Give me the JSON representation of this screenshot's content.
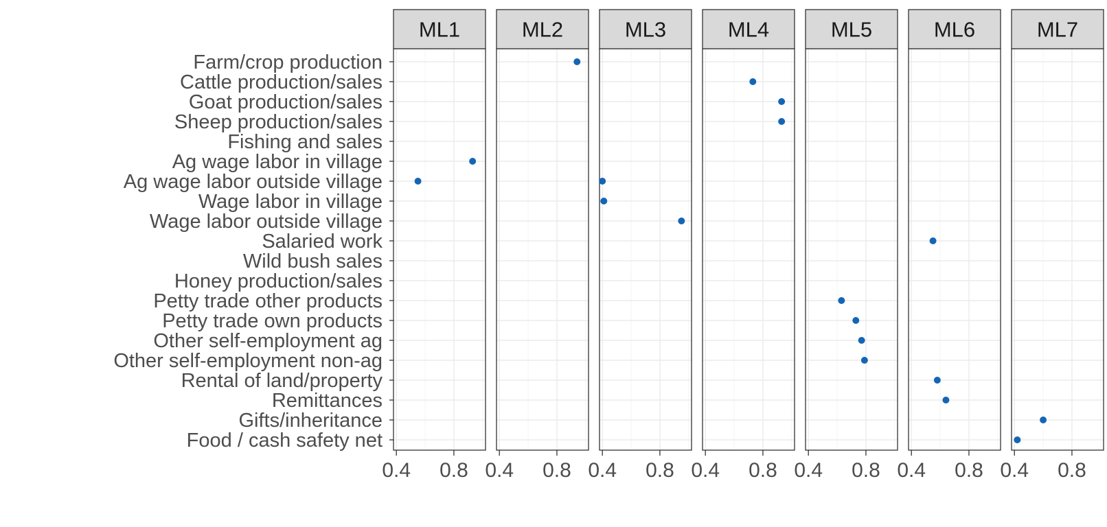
{
  "chart_data": {
    "type": "scatter",
    "facet_variable": "panel",
    "panels": [
      "ML1",
      "ML2",
      "ML3",
      "ML4",
      "ML5",
      "ML6",
      "ML7"
    ],
    "categories": [
      "Farm/crop production",
      "Cattle production/sales",
      "Goat production/sales",
      "Sheep production/sales",
      "Fishing and sales",
      "Ag wage labor in village",
      "Ag wage labor outside village",
      "Wage labor in village",
      "Wage labor outside village",
      "Salaried work",
      "Wild bush sales",
      "Honey production/sales",
      "Petty trade other products",
      "Petty trade own products",
      "Other self-employment ag",
      "Other self-employment non-ag",
      "Rental of land/property",
      "Remittances",
      "Gifts/inheritance",
      "Food / cash safety net"
    ],
    "x_ticks": [
      0.4,
      0.8
    ],
    "x_tick_labels": [
      "0.4",
      "0.8"
    ],
    "xlim": [
      0.38,
      1.02
    ],
    "xlabel": "",
    "ylabel": "",
    "grid": true,
    "point_color": "#1565b5",
    "points": [
      {
        "panel": "ML1",
        "category": "Ag wage labor in village",
        "x": 0.93
      },
      {
        "panel": "ML1",
        "category": "Ag wage labor outside village",
        "x": 0.55
      },
      {
        "panel": "ML2",
        "category": "Farm/crop production",
        "x": 0.94
      },
      {
        "panel": "ML3",
        "category": "Ag wage labor outside village",
        "x": 0.4
      },
      {
        "panel": "ML3",
        "category": "Wage labor in village",
        "x": 0.41
      },
      {
        "panel": "ML3",
        "category": "Wage labor outside village",
        "x": 0.95
      },
      {
        "panel": "ML4",
        "category": "Cattle production/sales",
        "x": 0.73
      },
      {
        "panel": "ML4",
        "category": "Goat production/sales",
        "x": 0.93
      },
      {
        "panel": "ML4",
        "category": "Sheep production/sales",
        "x": 0.93
      },
      {
        "panel": "ML5",
        "category": "Petty trade other products",
        "x": 0.63
      },
      {
        "panel": "ML5",
        "category": "Petty trade own products",
        "x": 0.73
      },
      {
        "panel": "ML5",
        "category": "Other self-employment ag",
        "x": 0.77
      },
      {
        "panel": "ML5",
        "category": "Other self-employment non-ag",
        "x": 0.79
      },
      {
        "panel": "ML6",
        "category": "Salaried work",
        "x": 0.55
      },
      {
        "panel": "ML6",
        "category": "Rental of land/property",
        "x": 0.58
      },
      {
        "panel": "ML6",
        "category": "Remittances",
        "x": 0.64
      },
      {
        "panel": "ML7",
        "category": "Gifts/inheritance",
        "x": 0.6
      },
      {
        "panel": "ML7",
        "category": "Food / cash safety net",
        "x": 0.42
      }
    ]
  }
}
